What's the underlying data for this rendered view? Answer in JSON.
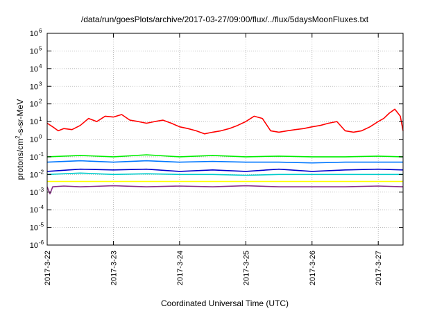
{
  "chart_data": {
    "type": "line",
    "title": "/data/run/goesPlots/archive/2017-03-27/09:00/flux/../flux/5daysMoonFluxes.txt",
    "xlabel": "Coordinated Universal Time (UTC)",
    "ylabel": {
      "prefix": "protons/cm",
      "superscript": "2",
      "suffix": "-s-sr-MeV"
    },
    "y_scale": "log",
    "ylim": [
      1e-06,
      1000000
    ],
    "y_ticks": [
      {
        "base": "10",
        "exp": "6",
        "value": 1000000
      },
      {
        "base": "10",
        "exp": "5",
        "value": 100000
      },
      {
        "base": "10",
        "exp": "4",
        "value": 10000
      },
      {
        "base": "10",
        "exp": "3",
        "value": 1000
      },
      {
        "base": "10",
        "exp": "2",
        "value": 100
      },
      {
        "base": "10",
        "exp": "1",
        "value": 10
      },
      {
        "base": "10",
        "exp": "0",
        "value": 1
      },
      {
        "base": "10",
        "exp": "-1",
        "value": 0.1
      },
      {
        "base": "10",
        "exp": "-2",
        "value": 0.01
      },
      {
        "base": "10",
        "exp": "-3",
        "value": 0.001
      },
      {
        "base": "10",
        "exp": "-4",
        "value": 0.0001
      },
      {
        "base": "10",
        "exp": "-5",
        "value": 1e-05
      },
      {
        "base": "10",
        "exp": "-6",
        "value": 1e-06
      }
    ],
    "xlim": [
      "2017-03-22T00:00",
      "2017-03-27T09:00"
    ],
    "x_ticks": [
      "2017-3-22",
      "2017-3-23",
      "2017-3-24",
      "2017-3-25",
      "2017-3-26",
      "2017-3-27"
    ],
    "grid": true,
    "legend": "none",
    "series": [
      {
        "color": "#ff0000",
        "x": [
          "2017-03-22T00:00",
          "2017-03-22T02:00",
          "2017-03-22T04:00",
          "2017-03-22T06:00",
          "2017-03-22T09:00",
          "2017-03-22T12:00",
          "2017-03-22T15:00",
          "2017-03-22T18:00",
          "2017-03-22T21:00",
          "2017-03-23T00:00",
          "2017-03-23T03:00",
          "2017-03-23T06:00",
          "2017-03-23T09:00",
          "2017-03-23T12:00",
          "2017-03-23T15:00",
          "2017-03-23T18:00",
          "2017-03-23T21:00",
          "2017-03-24T00:00",
          "2017-03-24T03:00",
          "2017-03-24T06:00",
          "2017-03-24T09:00",
          "2017-03-24T12:00",
          "2017-03-24T15:00",
          "2017-03-24T18:00",
          "2017-03-24T21:00",
          "2017-03-25T00:00",
          "2017-03-25T03:00",
          "2017-03-25T06:00",
          "2017-03-25T09:00",
          "2017-03-25T12:00",
          "2017-03-25T15:00",
          "2017-03-25T18:00",
          "2017-03-25T21:00",
          "2017-03-26T00:00",
          "2017-03-26T03:00",
          "2017-03-26T06:00",
          "2017-03-26T09:00",
          "2017-03-26T12:00",
          "2017-03-26T15:00",
          "2017-03-26T18:00",
          "2017-03-26T21:00",
          "2017-03-27T00:00",
          "2017-03-27T02:00",
          "2017-03-27T04:00",
          "2017-03-27T06:00",
          "2017-03-27T08:00",
          "2017-03-27T09:00"
        ],
        "values": [
          8,
          5,
          3,
          4,
          3.5,
          6,
          15,
          10,
          20,
          18,
          25,
          12,
          10,
          8,
          10,
          12,
          8,
          5,
          4,
          3,
          2,
          2.5,
          3,
          4,
          6,
          10,
          20,
          15,
          3,
          2.5,
          3,
          3.5,
          4,
          5,
          6,
          8,
          10,
          3,
          2.5,
          3,
          5,
          10,
          15,
          30,
          50,
          20,
          3
        ]
      },
      {
        "color": "#00ee00",
        "x": [
          "2017-03-22T00:00",
          "2017-03-22T12:00",
          "2017-03-23T00:00",
          "2017-03-23T12:00",
          "2017-03-24T00:00",
          "2017-03-24T12:00",
          "2017-03-25T00:00",
          "2017-03-25T12:00",
          "2017-03-26T00:00",
          "2017-03-26T12:00",
          "2017-03-27T00:00",
          "2017-03-27T09:00"
        ],
        "values": [
          0.1,
          0.12,
          0.1,
          0.13,
          0.1,
          0.12,
          0.1,
          0.11,
          0.1,
          0.1,
          0.11,
          0.1
        ]
      },
      {
        "color": "#0077ff",
        "x": [
          "2017-03-22T00:00",
          "2017-03-22T12:00",
          "2017-03-23T00:00",
          "2017-03-23T12:00",
          "2017-03-24T00:00",
          "2017-03-24T12:00",
          "2017-03-25T00:00",
          "2017-03-25T12:00",
          "2017-03-26T00:00",
          "2017-03-26T12:00",
          "2017-03-27T00:00",
          "2017-03-27T09:00"
        ],
        "values": [
          0.05,
          0.06,
          0.05,
          0.06,
          0.05,
          0.055,
          0.05,
          0.05,
          0.045,
          0.05,
          0.05,
          0.05
        ]
      },
      {
        "color": "#00cccc",
        "x": [
          "2017-03-22T00:00",
          "2017-03-22T12:00",
          "2017-03-23T00:00",
          "2017-03-23T12:00",
          "2017-03-24T00:00",
          "2017-03-24T12:00",
          "2017-03-25T00:00",
          "2017-03-25T12:00",
          "2017-03-26T00:00",
          "2017-03-26T12:00",
          "2017-03-27T00:00",
          "2017-03-27T09:00"
        ],
        "values": [
          0.01,
          0.012,
          0.01,
          0.011,
          0.01,
          0.01,
          0.009,
          0.01,
          0.01,
          0.01,
          0.01,
          0.01
        ]
      },
      {
        "color": "#0000cc",
        "x": [
          "2017-03-22T00:00",
          "2017-03-22T12:00",
          "2017-03-23T00:00",
          "2017-03-23T12:00",
          "2017-03-24T00:00",
          "2017-03-24T12:00",
          "2017-03-25T00:00",
          "2017-03-25T12:00",
          "2017-03-26T00:00",
          "2017-03-26T12:00",
          "2017-03-27T00:00",
          "2017-03-27T09:00"
        ],
        "values": [
          0.015,
          0.02,
          0.018,
          0.02,
          0.015,
          0.018,
          0.015,
          0.02,
          0.015,
          0.018,
          0.02,
          0.018
        ]
      },
      {
        "color": "#ffff00",
        "x": [
          "2017-03-22T00:00",
          "2017-03-22T12:00",
          "2017-03-23T00:00",
          "2017-03-23T12:00",
          "2017-03-24T00:00",
          "2017-03-24T12:00",
          "2017-03-25T00:00",
          "2017-03-25T12:00",
          "2017-03-26T00:00",
          "2017-03-26T12:00",
          "2017-03-27T00:00",
          "2017-03-27T09:00"
        ],
        "values": [
          0.004,
          0.004,
          0.004,
          0.004,
          0.004,
          0.004,
          0.004,
          0.004,
          0.004,
          0.004,
          0.004,
          0.004
        ]
      },
      {
        "color": "#8b2e8b",
        "x": [
          "2017-03-22T00:00",
          "2017-03-22T01:00",
          "2017-03-22T02:00",
          "2017-03-22T06:00",
          "2017-03-22T12:00",
          "2017-03-23T00:00",
          "2017-03-23T12:00",
          "2017-03-24T00:00",
          "2017-03-24T12:00",
          "2017-03-25T00:00",
          "2017-03-25T12:00",
          "2017-03-26T00:00",
          "2017-03-26T12:00",
          "2017-03-27T00:00",
          "2017-03-27T09:00"
        ],
        "values": [
          0.002,
          0.0008,
          0.002,
          0.0022,
          0.002,
          0.0023,
          0.002,
          0.0022,
          0.002,
          0.0023,
          0.002,
          0.002,
          0.002,
          0.0022,
          0.002
        ]
      }
    ]
  }
}
